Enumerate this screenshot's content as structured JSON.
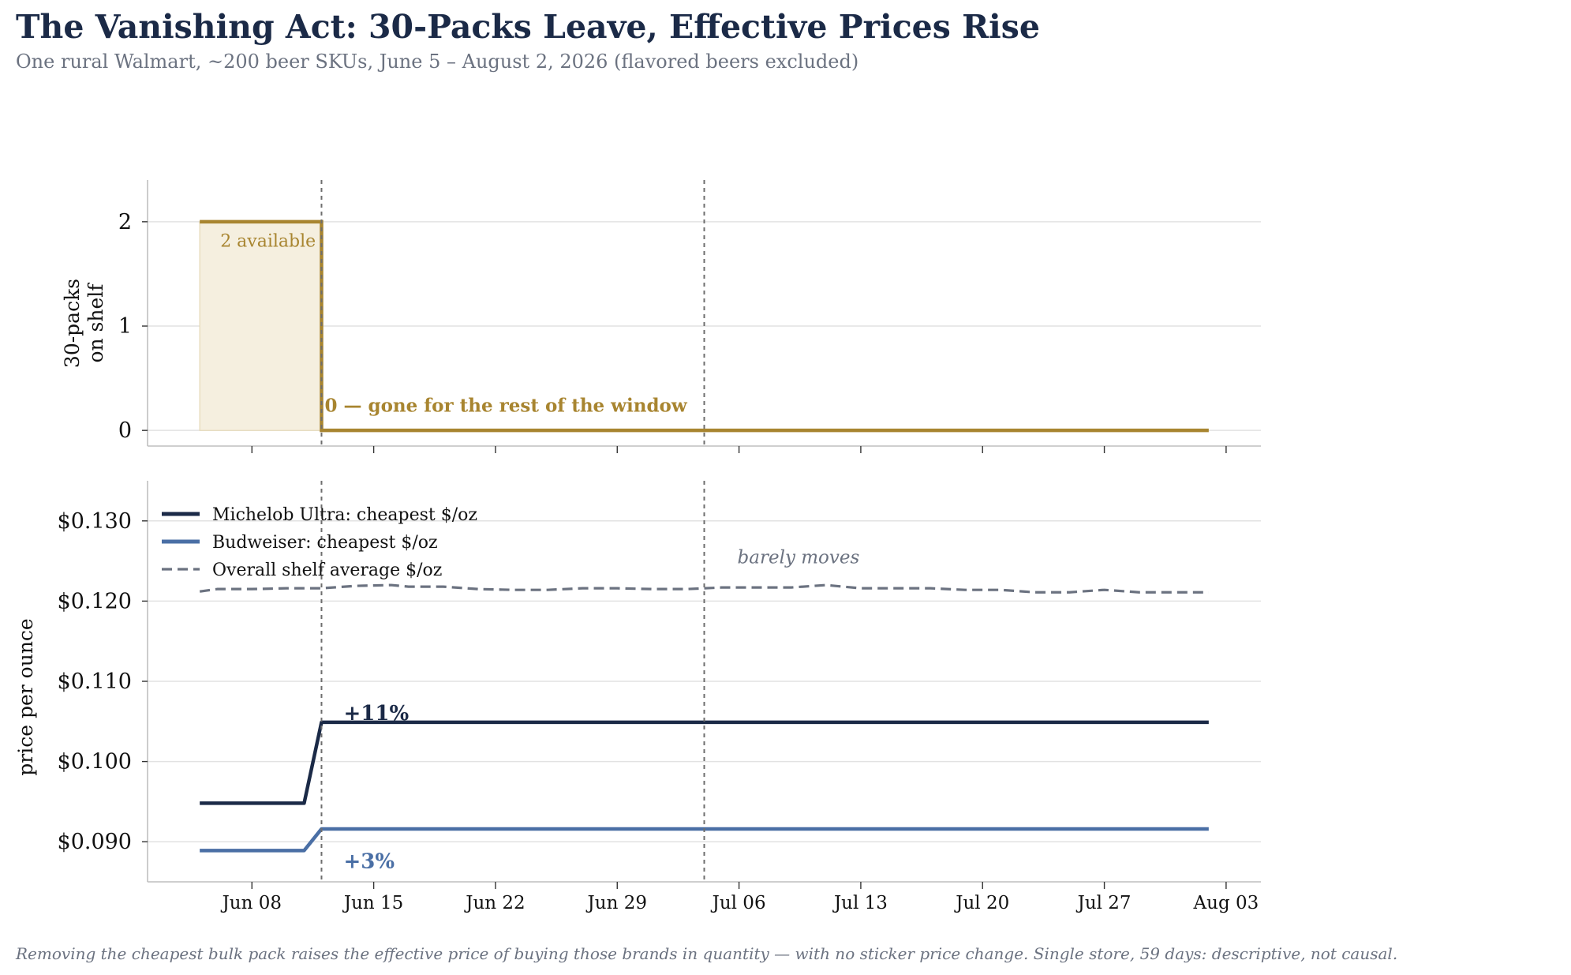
{
  "title": "The Vanishing Act: 30-Packs Leave, Effective Prices Rise",
  "subtitle": "One rural Walmart, ~200 beer SKUs, June 5 – August 2, 2026 (flavored beers excluded)",
  "footer": "Removing the cheapest bulk pack raises the effective price of buying those brands in quantity — with no sticker price change. Single store, 59 days: descriptive, not causal.",
  "colors": {
    "gold": "#a88530",
    "gold_fill": "#f5efdf",
    "navy": "#1b2a47",
    "steel": "#4a6fa5",
    "gray": "#6b7280",
    "grid": "#e2e2e2",
    "spine": "#bfbfbf",
    "vline": "#6e6e6e"
  },
  "chart_data": [
    {
      "type": "line",
      "ylabel": "30-packs\non shelf",
      "ylim": [
        -0.15,
        2.4
      ],
      "yticks": [
        0,
        1,
        2
      ],
      "ytick_labels": [
        "0",
        "1",
        "2"
      ],
      "grid": true,
      "series": [
        {
          "name": "",
          "step": true,
          "filled": true,
          "x": [
            "2026-06-05",
            "2026-06-12",
            "2026-06-12",
            "2026-08-02"
          ],
          "y": [
            2,
            2,
            0,
            0
          ]
        }
      ],
      "annotations": [
        {
          "text": "2 available",
          "x": "2026-06-06",
          "y": 1.76,
          "bold": false
        },
        {
          "text": "0 — gone for the rest of the window",
          "x": "2026-06-12",
          "y": 0.18,
          "bold": true
        }
      ],
      "vlines": [
        "2026-06-12",
        "2026-07-04"
      ]
    },
    {
      "type": "line",
      "ylabel": "price per ounce",
      "ylim": [
        0.085,
        0.135
      ],
      "yticks": [
        0.09,
        0.1,
        0.11,
        0.12,
        0.13
      ],
      "ytick_labels": [
        "$0.090",
        "$0.100",
        "$0.110",
        "$0.120",
        "$0.130"
      ],
      "x_ticks": [
        "2026-06-08",
        "2026-06-15",
        "2026-06-22",
        "2026-06-29",
        "2026-07-06",
        "2026-07-13",
        "2026-07-20",
        "2026-07-27",
        "2026-08-03"
      ],
      "x_tick_labels": [
        "Jun 08",
        "Jun 15",
        "Jun 22",
        "Jun 29",
        "Jul 06",
        "Jul 13",
        "Jul 20",
        "Jul 27",
        "Aug 03"
      ],
      "xlim": [
        "2026-06-02",
        "2026-08-05"
      ],
      "grid": true,
      "legend": "top-left",
      "series": [
        {
          "name": "Michelob Ultra: cheapest $/oz",
          "style": "solid",
          "x": [
            "2026-06-05",
            "2026-06-11",
            "2026-06-12",
            "2026-08-02"
          ],
          "y": [
            0.0948,
            0.0948,
            0.1049,
            0.1049
          ]
        },
        {
          "name": "Budweiser: cheapest $/oz",
          "style": "solid",
          "x": [
            "2026-06-05",
            "2026-06-11",
            "2026-06-12",
            "2026-08-02"
          ],
          "y": [
            0.0889,
            0.0889,
            0.0916,
            0.0916
          ]
        },
        {
          "name": "Overall shelf average $/oz",
          "style": "dashed",
          "x": [
            "2026-06-05",
            "2026-06-06",
            "2026-06-08",
            "2026-06-10",
            "2026-06-12",
            "2026-06-14",
            "2026-06-16",
            "2026-06-17",
            "2026-06-19",
            "2026-06-21",
            "2026-06-23",
            "2026-06-25",
            "2026-06-27",
            "2026-06-29",
            "2026-07-01",
            "2026-07-03",
            "2026-07-05",
            "2026-07-07",
            "2026-07-09",
            "2026-07-11",
            "2026-07-13",
            "2026-07-15",
            "2026-07-17",
            "2026-07-19",
            "2026-07-21",
            "2026-07-23",
            "2026-07-25",
            "2026-07-27",
            "2026-07-29",
            "2026-07-31",
            "2026-08-02"
          ],
          "y": [
            0.1212,
            0.1215,
            0.1215,
            0.1216,
            0.1216,
            0.1219,
            0.122,
            0.1218,
            0.1218,
            0.1215,
            0.1214,
            0.1214,
            0.1216,
            0.1216,
            0.1215,
            0.1215,
            0.1217,
            0.1217,
            0.1217,
            0.122,
            0.1216,
            0.1216,
            0.1216,
            0.1214,
            0.1214,
            0.1211,
            0.1211,
            0.1214,
            0.1211,
            0.1211,
            0.1211
          ]
        }
      ],
      "annotations": [
        {
          "text": "+11%",
          "x": "2026-06-13",
          "y": 0.1052,
          "color": "navy",
          "bold": true
        },
        {
          "text": "+3%",
          "x": "2026-06-13",
          "y": 0.0889,
          "color": "steel",
          "bold": true
        },
        {
          "text": "barely moves",
          "x": "2026-07-05",
          "y": 0.1247,
          "color": "gray",
          "italic": true
        }
      ],
      "vlines": [
        "2026-06-12",
        "2026-07-04"
      ]
    }
  ]
}
